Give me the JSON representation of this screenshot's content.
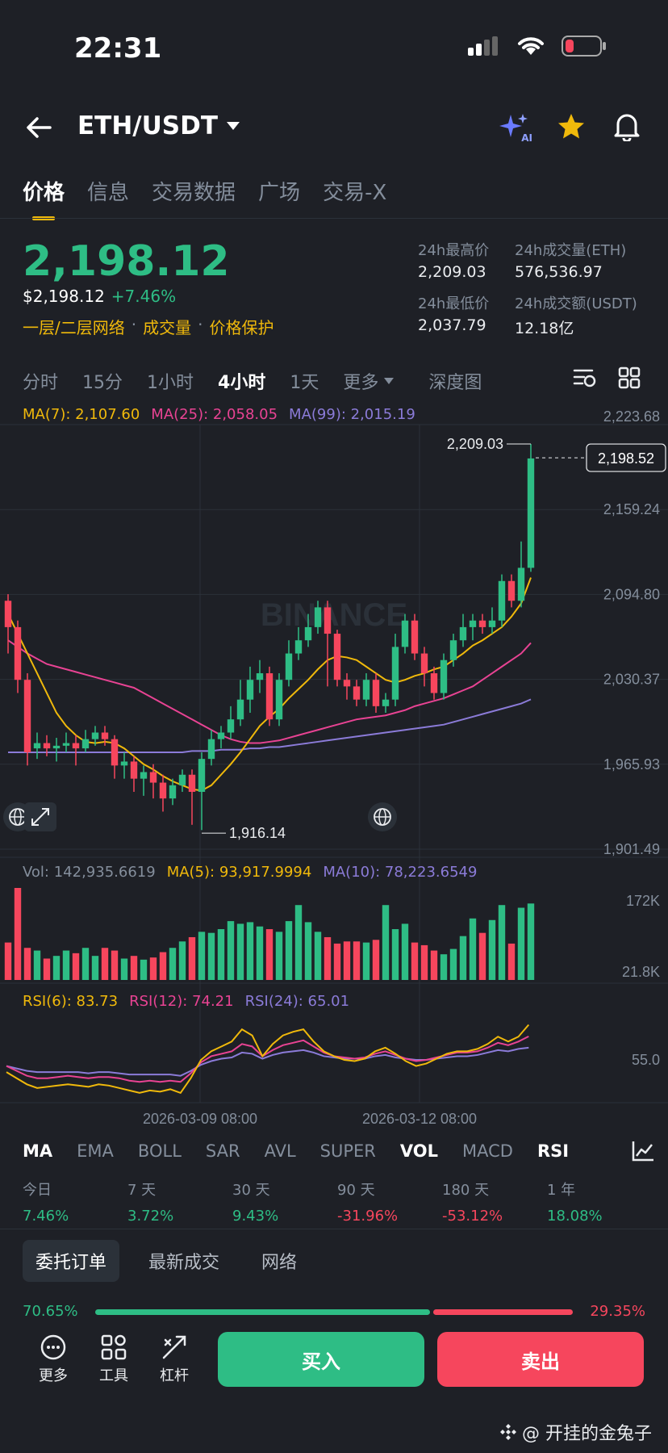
{
  "status_bar": {
    "time": "22:31"
  },
  "header": {
    "pair": "ETH/USDT",
    "ai_label": "AI"
  },
  "tabs": [
    {
      "label": "价格",
      "active": true
    },
    {
      "label": "信息"
    },
    {
      "label": "交易数据"
    },
    {
      "label": "广场"
    },
    {
      "label": "交易-X"
    }
  ],
  "price": {
    "last": "2,198.12",
    "usd": "$2,198.12",
    "change": "+7.46%",
    "tags": [
      "一层/二层网络",
      "成交量",
      "价格保护"
    ]
  },
  "stats": {
    "high_label": "24h最高价",
    "high": "2,209.03",
    "vol_eth_label": "24h成交量(ETH)",
    "vol_eth": "576,536.97",
    "low_label": "24h最低价",
    "low": "2,037.79",
    "vol_usdt_label": "24h成交额(USDT)",
    "vol_usdt": "12.18亿"
  },
  "intervals": [
    "分时",
    "15分",
    "1小时",
    "4小时",
    "1天",
    "更多",
    "深度图"
  ],
  "active_interval": "4小时",
  "ma_legend": {
    "ma7": "MA(7): 2,107.60",
    "ma25": "MA(25): 2,058.05",
    "ma99": "MA(99): 2,015.19"
  },
  "vol_legend": {
    "vol": "Vol: 142,935.6619",
    "ma5": "MA(5): 93,917.9994",
    "ma10": "MA(10): 78,223.6549"
  },
  "rsi_legend": {
    "rsi6": "RSI(6): 83.73",
    "rsi12": "RSI(12): 74.21",
    "rsi24": "RSI(24): 65.01"
  },
  "chart_data": {
    "type": "candlestick",
    "price_axis_ticks": [
      "2,223.68",
      "2,159.24",
      "2,094.80",
      "2,030.37",
      "1,965.93",
      "1,901.49"
    ],
    "volume_axis_ticks": [
      "172K",
      "21.8K"
    ],
    "rsi_axis_ticks": [
      "55.0"
    ],
    "x_tick_labels": [
      "2026-03-09 08:00",
      "2026-03-12 08:00"
    ],
    "current_price_tag": "2,198.52",
    "high_marker": "2,209.03",
    "low_marker": "1,916.14",
    "watermark": "BINANCE",
    "yrange": [
      1901.49,
      2223.68
    ],
    "candles": [
      [
        2090,
        2070,
        2095,
        2050
      ],
      [
        2070,
        2030,
        2075,
        2020
      ],
      [
        2030,
        1975,
        2035,
        1965
      ],
      [
        1978,
        1982,
        1990,
        1970
      ],
      [
        1982,
        1978,
        1988,
        1972
      ],
      [
        1978,
        1980,
        1986,
        1968
      ],
      [
        1980,
        1982,
        1990,
        1975
      ],
      [
        1982,
        1978,
        1988,
        1965
      ],
      [
        1978,
        1985,
        1992,
        1975
      ],
      [
        1985,
        1990,
        1995,
        1980
      ],
      [
        1990,
        1985,
        1995,
        1980
      ],
      [
        1985,
        1965,
        1988,
        1955
      ],
      [
        1965,
        1968,
        1975,
        1955
      ],
      [
        1968,
        1955,
        1972,
        1945
      ],
      [
        1955,
        1960,
        1965,
        1942
      ],
      [
        1960,
        1952,
        1966,
        1940
      ],
      [
        1952,
        1940,
        1958,
        1930
      ],
      [
        1940,
        1950,
        1955,
        1935
      ],
      [
        1950,
        1958,
        1962,
        1945
      ],
      [
        1958,
        1945,
        1962,
        1920
      ],
      [
        1945,
        1970,
        1975,
        1916
      ],
      [
        1970,
        1985,
        1992,
        1965
      ],
      [
        1985,
        1990,
        1995,
        1978
      ],
      [
        1990,
        2000,
        2010,
        1985
      ],
      [
        2000,
        2015,
        2030,
        1995
      ],
      [
        2015,
        2030,
        2040,
        2005
      ],
      [
        2030,
        2035,
        2045,
        2020
      ],
      [
        2035,
        2000,
        2040,
        1995
      ],
      [
        2000,
        2030,
        2035,
        1995
      ],
      [
        2030,
        2050,
        2060,
        2025
      ],
      [
        2050,
        2060,
        2070,
        2045
      ],
      [
        2060,
        2070,
        2080,
        2055
      ],
      [
        2070,
        2085,
        2090,
        2065
      ],
      [
        2085,
        2065,
        2090,
        2025
      ],
      [
        2065,
        2030,
        2068,
        2025
      ],
      [
        2030,
        2025,
        2035,
        2015
      ],
      [
        2025,
        2015,
        2030,
        2010
      ],
      [
        2015,
        2030,
        2035,
        2010
      ],
      [
        2030,
        2010,
        2035,
        2005
      ],
      [
        2010,
        2015,
        2020,
        2005
      ],
      [
        2015,
        2055,
        2065,
        2010
      ],
      [
        2055,
        2075,
        2080,
        2050
      ],
      [
        2075,
        2050,
        2080,
        2045
      ],
      [
        2050,
        2035,
        2055,
        2025
      ],
      [
        2035,
        2020,
        2040,
        2015
      ],
      [
        2020,
        2045,
        2050,
        2015
      ],
      [
        2045,
        2060,
        2065,
        2040
      ],
      [
        2060,
        2070,
        2080,
        2055
      ],
      [
        2070,
        2075,
        2080,
        2060
      ],
      [
        2075,
        2070,
        2080,
        2065
      ],
      [
        2070,
        2075,
        2085,
        2065
      ],
      [
        2075,
        2105,
        2110,
        2070
      ],
      [
        2105,
        2090,
        2110,
        2085
      ],
      [
        2090,
        2115,
        2135,
        2085
      ],
      [
        2115,
        2198,
        2209,
        2112
      ]
    ],
    "ma7": [
      2080,
      2065,
      2050,
      2035,
      2020,
      2005,
      1995,
      1988,
      1983,
      1982,
      1983,
      1982,
      1978,
      1972,
      1966,
      1962,
      1957,
      1953,
      1950,
      1947,
      1946,
      1950,
      1958,
      1966,
      1975,
      1985,
      1995,
      2002,
      2008,
      2016,
      2023,
      2030,
      2038,
      2045,
      2048,
      2047,
      2045,
      2040,
      2035,
      2030,
      2028,
      2030,
      2033,
      2035,
      2038,
      2040,
      2045,
      2050,
      2056,
      2060,
      2065,
      2070,
      2078,
      2088,
      2107.6
    ],
    "ma25": [
      2060,
      2055,
      2050,
      2046,
      2042,
      2040,
      2038,
      2036,
      2034,
      2032,
      2030,
      2028,
      2026,
      2024,
      2020,
      2016,
      2012,
      2008,
      2004,
      2000,
      1996,
      1992,
      1988,
      1985,
      1983,
      1982,
      1982,
      1983,
      1984,
      1986,
      1988,
      1990,
      1992,
      1994,
      1996,
      1998,
      2000,
      2001,
      2002,
      2003,
      2005,
      2007,
      2010,
      2012,
      2014,
      2016,
      2019,
      2022,
      2025,
      2030,
      2035,
      2040,
      2045,
      2050,
      2058.05
    ],
    "ma99": [
      1975,
      1975,
      1975,
      1975,
      1975,
      1975,
      1975,
      1975,
      1975,
      1975,
      1975,
      1975,
      1975,
      1975,
      1975,
      1975,
      1975,
      1975,
      1975,
      1976,
      1976,
      1976,
      1977,
      1977,
      1977,
      1978,
      1978,
      1979,
      1979,
      1980,
      1981,
      1982,
      1983,
      1984,
      1985,
      1986,
      1987,
      1988,
      1989,
      1990,
      1991,
      1992,
      1993,
      1994,
      1995,
      1996,
      1998,
      2000,
      2002,
      2004,
      2006,
      2008,
      2010,
      2012,
      2015.19
    ],
    "volumes": [
      70,
      172,
      60,
      55,
      40,
      45,
      55,
      50,
      60,
      45,
      60,
      55,
      40,
      45,
      38,
      42,
      52,
      60,
      72,
      80,
      90,
      88,
      95,
      110,
      105,
      108,
      100,
      95,
      90,
      110,
      140,
      108,
      90,
      80,
      68,
      72,
      72,
      70,
      75,
      140,
      95,
      105,
      70,
      65,
      55,
      48,
      58,
      82,
      115,
      88,
      112,
      140,
      68,
      135,
      142.9
    ],
    "rsi6": [
      45,
      40,
      35,
      32,
      33,
      34,
      35,
      34,
      33,
      35,
      34,
      32,
      30,
      28,
      30,
      29,
      31,
      28,
      40,
      55,
      62,
      66,
      70,
      80,
      75,
      58,
      68,
      75,
      78,
      80,
      70,
      62,
      58,
      55,
      54,
      56,
      62,
      65,
      60,
      54,
      50,
      52,
      56,
      60,
      62,
      62,
      64,
      68,
      74,
      70,
      74,
      83.73
    ],
    "rsi12": [
      50,
      46,
      42,
      40,
      40,
      41,
      42,
      41,
      40,
      41,
      41,
      40,
      38,
      37,
      38,
      37,
      38,
      37,
      44,
      53,
      58,
      60,
      62,
      68,
      66,
      58,
      63,
      67,
      69,
      71,
      66,
      61,
      58,
      57,
      56,
      57,
      60,
      62,
      59,
      56,
      54,
      55,
      57,
      59,
      61,
      61,
      62,
      65,
      69,
      67,
      70,
      74.21
    ],
    "rsi24": [
      50,
      48,
      46,
      45,
      45,
      45,
      45,
      45,
      44,
      45,
      45,
      44,
      43,
      43,
      43,
      43,
      43,
      42,
      46,
      51,
      54,
      56,
      57,
      61,
      60,
      56,
      59,
      61,
      62,
      63,
      61,
      58,
      57,
      56,
      56,
      56,
      58,
      59,
      57,
      56,
      55,
      55,
      56,
      57,
      58,
      58,
      59,
      61,
      63,
      62,
      64,
      65.01
    ]
  },
  "indicators": [
    "MA",
    "EMA",
    "BOLL",
    "SAR",
    "AVL",
    "SUPER",
    "VOL",
    "MACD",
    "RSI"
  ],
  "active_indicators": [
    "MA",
    "VOL",
    "RSI"
  ],
  "performance": [
    {
      "label": "今日",
      "value": "7.46%",
      "up": true
    },
    {
      "label": "7 天",
      "value": "3.72%",
      "up": true
    },
    {
      "label": "30 天",
      "value": "9.43%",
      "up": true
    },
    {
      "label": "90 天",
      "value": "-31.96%",
      "up": false
    },
    {
      "label": "180 天",
      "value": "-53.12%",
      "up": false
    },
    {
      "label": "1 年",
      "value": "18.08%",
      "up": true
    }
  ],
  "order_tabs": [
    "委托订单",
    "最新成交",
    "网络"
  ],
  "ratio": {
    "buy": "70.65%",
    "sell": "29.35%",
    "buy_fraction": 0.7065
  },
  "bottom": {
    "more": "更多",
    "tools": "工具",
    "leverage": "杠杆",
    "buy": "买入",
    "sell": "卖出"
  },
  "watermark": "@ 开挂的金兔子",
  "colors": {
    "up": "#2ebd85",
    "down": "#f6465d",
    "accent": "#f0b90b",
    "ma25": "#e84393",
    "ma99": "#8b7bd8"
  }
}
